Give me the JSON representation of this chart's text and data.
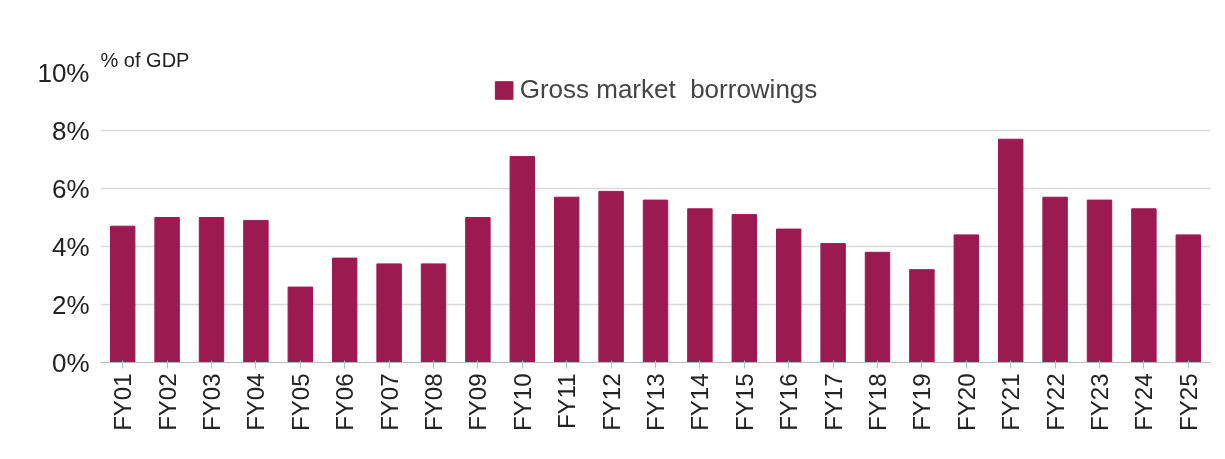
{
  "chart_data": {
    "type": "bar",
    "ylabel": "% of GDP",
    "categories": [
      "FY01",
      "FY02",
      "FY03",
      "FY04",
      "FY05",
      "FY06",
      "FY07",
      "FY08",
      "FY09",
      "FY10",
      "FY11",
      "FY12",
      "FY13",
      "FY14",
      "FY15",
      "FY16",
      "FY17",
      "FY18",
      "FY19",
      "FY20",
      "FY21",
      "FY22",
      "FY23",
      "FY24",
      "FY25"
    ],
    "series": [
      {
        "name": "Gross market  borrowings",
        "color": "#9b1a4f",
        "values": [
          4.7,
          5.0,
          5.0,
          4.9,
          2.6,
          3.6,
          3.4,
          3.4,
          5.0,
          7.1,
          5.7,
          5.9,
          5.6,
          5.3,
          5.1,
          4.6,
          4.1,
          3.8,
          3.2,
          4.4,
          7.7,
          5.7,
          5.6,
          5.3,
          4.4
        ]
      }
    ],
    "ylim": [
      0,
      10
    ],
    "yticks": [
      {
        "value": 0,
        "label": "0%"
      },
      {
        "value": 2,
        "label": "2%"
      },
      {
        "value": 4,
        "label": "4%"
      },
      {
        "value": 6,
        "label": "6%"
      },
      {
        "value": 8,
        "label": "8%"
      },
      {
        "value": 10,
        "label": "10%"
      }
    ],
    "grid": "y",
    "legend": "top"
  }
}
